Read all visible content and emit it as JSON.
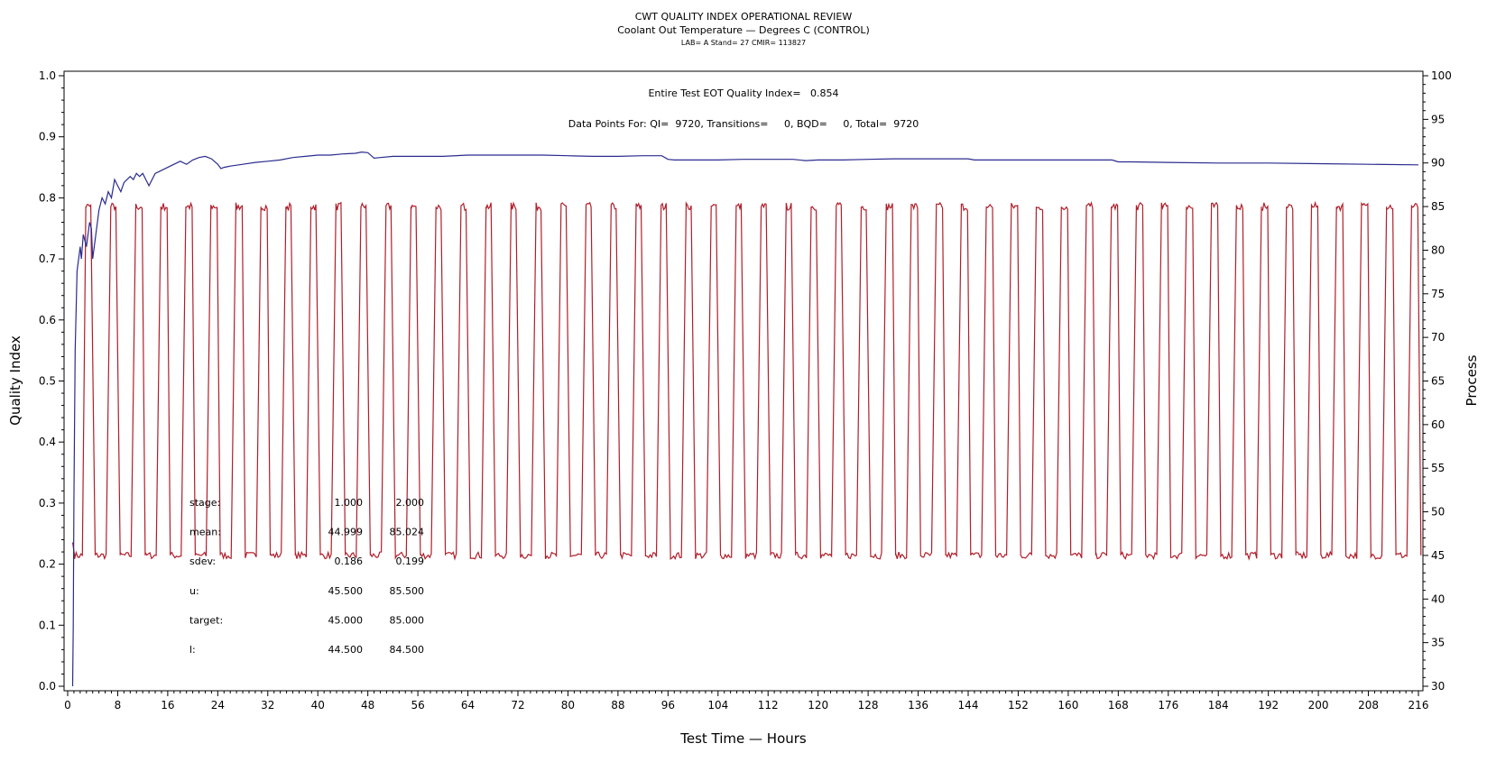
{
  "chart_data": {
    "type": "line",
    "title": "CWT QUALITY INDEX OPERATIONAL REVIEW",
    "subtitle": "Coolant Out Temperature — Degrees C (CONTROL)",
    "subtitle2": "LAB= A Stand= 27 CMIR= 113827",
    "xlabel": "Test Time — Hours",
    "ylabel": "Quality Index",
    "y2label": "Process",
    "xlim": [
      -0.5,
      216.5
    ],
    "ylim": [
      0.0,
      1.0
    ],
    "y2lim": [
      30,
      100
    ],
    "x_ticks": [
      "0",
      "8",
      "16",
      "24",
      "32",
      "40",
      "48",
      "56",
      "64",
      "72",
      "80",
      "88",
      "96",
      "104",
      "112",
      "120",
      "128",
      "136",
      "144",
      "152",
      "160",
      "168",
      "176",
      "184",
      "192",
      "200",
      "208",
      "216"
    ],
    "y_ticks": [
      "0.0",
      "0.1",
      "0.2",
      "0.3",
      "0.4",
      "0.5",
      "0.6",
      "0.7",
      "0.8",
      "0.9",
      "1.0"
    ],
    "y2_ticks": [
      "30",
      "35",
      "40",
      "45",
      "50",
      "55",
      "60",
      "65",
      "70",
      "75",
      "80",
      "85",
      "90",
      "95",
      "100"
    ],
    "annotations": {
      "qi_text": "Entire Test EOT Quality Index=   0.854",
      "points_text": "Data Points For: QI=  9720, Transitions=     0, BQD=     0, Total=  9720"
    },
    "stats": [
      {
        "label": "stage:",
        "v1": "1.000",
        "v2": "2.000"
      },
      {
        "label": "mean:",
        "v1": "44.999",
        "v2": "85.024"
      },
      {
        "label": "sdev:",
        "v1": "0.186",
        "v2": "0.199"
      },
      {
        "label": "u:",
        "v1": "45.500",
        "v2": "85.500"
      },
      {
        "label": "target:",
        "v1": "45.000",
        "v2": "85.000"
      },
      {
        "label": "l:",
        "v1": "44.500",
        "v2": "84.500"
      }
    ],
    "series": [
      {
        "axis": "left",
        "color": "#2b2b8f",
        "x": [
          0.8,
          0.9,
          1.0,
          1.2,
          1.5,
          2.0,
          2.2,
          2.5,
          3.0,
          3.5,
          3.8,
          4.0,
          4.5,
          5.0,
          5.5,
          6.0,
          6.5,
          7.0,
          7.5,
          8.0,
          8.5,
          9.0,
          9.5,
          10.0,
          10.5,
          11.0,
          11.5,
          12.0,
          12.5,
          13.0,
          14.0,
          15.0,
          16.0,
          17.0,
          18.0,
          19.0,
          20.0,
          21.0,
          22.0,
          23.0,
          24.0,
          24.5,
          25.0,
          26.0,
          28.0,
          30.0,
          32.0,
          34.0,
          36.0,
          38.0,
          40.0,
          42.0,
          44.0,
          46.0,
          47.0,
          48.0,
          49.0,
          50.0,
          52.0,
          56.0,
          60.0,
          64.0,
          68.0,
          72.0,
          76.0,
          80.0,
          84.0,
          88.0,
          92.0,
          95.0,
          96.0,
          97.0,
          100.0,
          104.0,
          108.0,
          112.0,
          116.0,
          118.0,
          120.0,
          124.0,
          128.0,
          132.0,
          136.0,
          140.0,
          144.0,
          145.0,
          148.0,
          152.0,
          156.0,
          160.0,
          164.0,
          167.0,
          168.0,
          170.0,
          176.0,
          184.0,
          192.0,
          200.0,
          208.0,
          216.0
        ],
        "values": [
          0.0,
          0.1,
          0.3,
          0.55,
          0.68,
          0.72,
          0.7,
          0.74,
          0.72,
          0.76,
          0.75,
          0.7,
          0.74,
          0.78,
          0.8,
          0.79,
          0.81,
          0.8,
          0.83,
          0.82,
          0.81,
          0.825,
          0.83,
          0.835,
          0.83,
          0.84,
          0.835,
          0.84,
          0.83,
          0.82,
          0.84,
          0.845,
          0.85,
          0.855,
          0.86,
          0.855,
          0.862,
          0.866,
          0.868,
          0.864,
          0.855,
          0.848,
          0.85,
          0.852,
          0.855,
          0.858,
          0.86,
          0.862,
          0.866,
          0.868,
          0.87,
          0.87,
          0.872,
          0.873,
          0.875,
          0.874,
          0.865,
          0.866,
          0.868,
          0.868,
          0.868,
          0.87,
          0.87,
          0.87,
          0.87,
          0.869,
          0.868,
          0.868,
          0.869,
          0.869,
          0.863,
          0.862,
          0.862,
          0.862,
          0.863,
          0.863,
          0.863,
          0.861,
          0.862,
          0.862,
          0.863,
          0.864,
          0.864,
          0.864,
          0.864,
          0.862,
          0.862,
          0.862,
          0.862,
          0.862,
          0.862,
          0.862,
          0.859,
          0.859,
          0.858,
          0.857,
          0.857,
          0.856,
          0.855,
          0.854
        ]
      },
      {
        "axis": "right",
        "color": "#b01e2a",
        "type": "square_wave",
        "low": 45.0,
        "high": 85.0,
        "start_x": 0.8,
        "start_value": 46.5,
        "period": 4.0,
        "first_rise": 2.9,
        "high_duration": 1.0
      }
    ]
  }
}
